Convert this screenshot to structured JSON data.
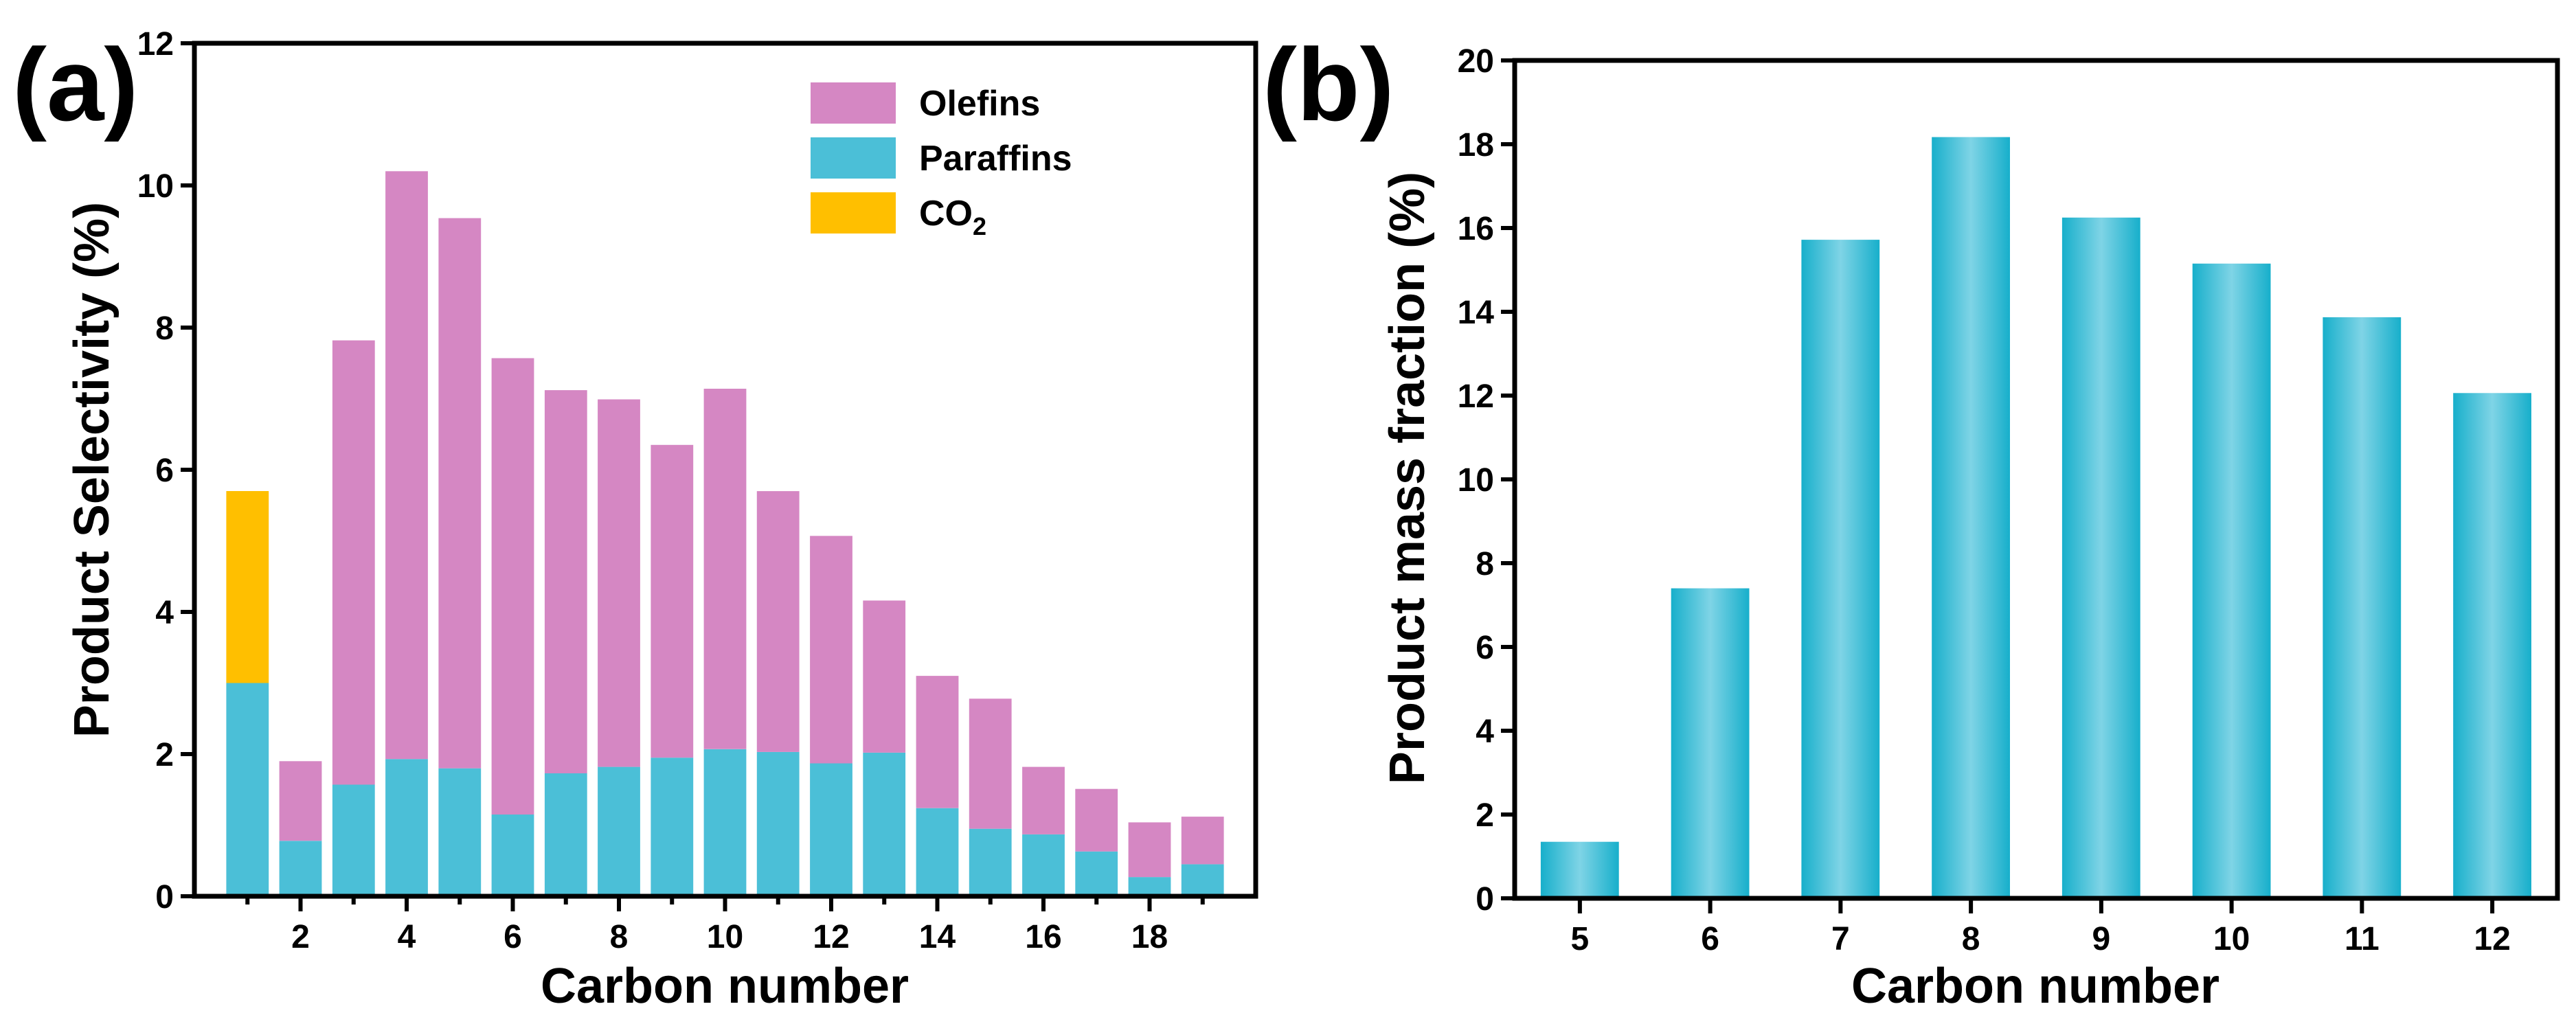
{
  "colors": {
    "olefins": "#d587c3",
    "paraffins": "#4bbfd7",
    "co2": "#ffbf00",
    "bar_b": "#17afcb",
    "bar_b_light": "#7fd4e6"
  },
  "chart_data": [
    {
      "type": "bar",
      "stacked": true,
      "panel_label": "(a)",
      "xlabel": "Carbon number",
      "ylabel": "Product Selectivity (%)",
      "ylim": [
        0,
        12
      ],
      "y_ticks": [
        0,
        2,
        4,
        6,
        8,
        10,
        12
      ],
      "xlim": [
        0,
        20
      ],
      "x_ticks": [
        2,
        4,
        6,
        8,
        10,
        12,
        14,
        16,
        18
      ],
      "legend": [
        {
          "key": "olefins",
          "label": "Olefins"
        },
        {
          "key": "paraffins",
          "label": "Paraffins"
        },
        {
          "key": "co2",
          "label": "CO",
          "subscript": "2"
        }
      ],
      "legend_position": "top-right",
      "categories": [
        1,
        2,
        3,
        4,
        5,
        6,
        7,
        8,
        9,
        10,
        11,
        12,
        13,
        14,
        15,
        16,
        17,
        18,
        19
      ],
      "series": [
        {
          "name": "Paraffins",
          "key": "paraffins",
          "values": [
            3.0,
            0.78,
            1.57,
            1.93,
            1.8,
            1.15,
            1.73,
            1.82,
            1.95,
            2.07,
            2.03,
            1.87,
            2.02,
            1.24,
            0.95,
            0.87,
            0.63,
            0.27,
            0.45
          ]
        },
        {
          "name": "Olefins",
          "key": "olefins",
          "values": [
            0,
            1.12,
            6.25,
            8.27,
            7.74,
            6.42,
            5.39,
            5.17,
            4.4,
            5.07,
            3.67,
            3.2,
            2.14,
            1.86,
            1.83,
            0.95,
            0.88,
            0.77,
            0.67
          ]
        },
        {
          "name": "CO2",
          "key": "co2",
          "values": [
            2.7,
            0,
            0,
            0,
            0,
            0,
            0,
            0,
            0,
            0,
            0,
            0,
            0,
            0,
            0,
            0,
            0,
            0,
            0
          ]
        }
      ]
    },
    {
      "type": "bar",
      "panel_label": "(b)",
      "xlabel": "Carbon number",
      "ylabel": "Product mass fraction (%)",
      "ylim": [
        0,
        20
      ],
      "y_ticks": [
        0,
        2,
        4,
        6,
        8,
        10,
        12,
        14,
        16,
        18,
        20
      ],
      "categories": [
        "5",
        "6",
        "7",
        "8",
        "9",
        "10",
        "11",
        "12"
      ],
      "values": [
        1.35,
        7.4,
        15.72,
        18.17,
        16.25,
        15.15,
        13.87,
        12.06
      ]
    }
  ]
}
